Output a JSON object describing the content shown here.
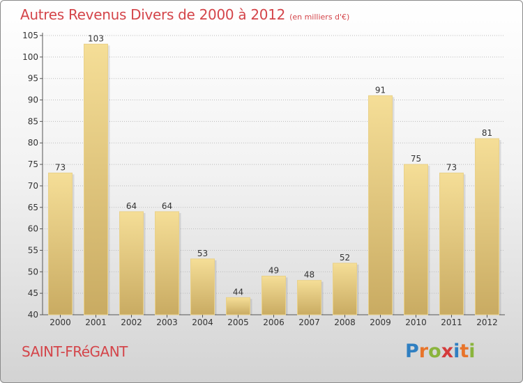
{
  "title": "Autres Revenus Divers de 2000 à 2012",
  "subtitle": "(en milliers d'€)",
  "commune": "SAINT-FRéGANT",
  "logo": {
    "letters": [
      "P",
      "r",
      "o",
      "x",
      "i",
      "t",
      "i"
    ],
    "colors": [
      "#2f7fc1",
      "#e8742a",
      "#8ab43c",
      "#d43b3b",
      "#2f7fc1",
      "#e8742a",
      "#8ab43c"
    ]
  },
  "chart_data": {
    "type": "bar",
    "title": "Autres Revenus Divers de 2000 à 2012",
    "subtitle": "(en milliers d'€)",
    "categories": [
      "2000",
      "2001",
      "2002",
      "2003",
      "2004",
      "2005",
      "2006",
      "2007",
      "2008",
      "2009",
      "2010",
      "2011",
      "2012"
    ],
    "values": [
      73,
      103,
      64,
      64,
      53,
      44,
      49,
      48,
      52,
      91,
      75,
      73,
      81
    ],
    "ylim": [
      40,
      105
    ],
    "yticks": [
      40,
      45,
      50,
      55,
      60,
      65,
      70,
      75,
      80,
      85,
      90,
      95,
      100,
      105
    ],
    "grid": true,
    "colors": {
      "bar_light": "#f5de97",
      "bar_dark": "#c9ab62",
      "grid": "#bbbbbb"
    }
  }
}
